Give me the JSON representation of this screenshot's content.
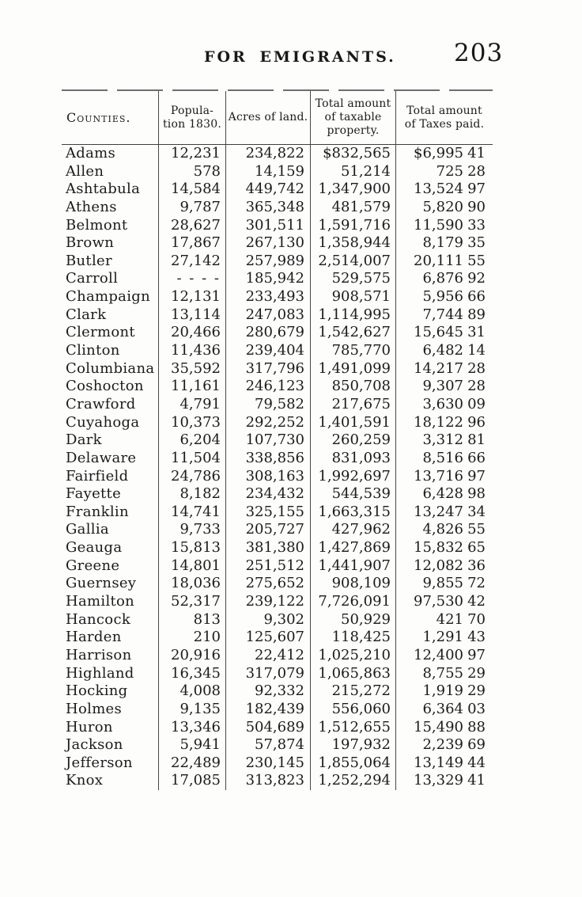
{
  "page": {
    "running_head": "FOR EMIGRANTS.",
    "page_number": "203"
  },
  "colors": {
    "paper": "#fdfdfc",
    "ink": "#1b1b1b",
    "rule": "#474747"
  },
  "table": {
    "headers": [
      {
        "lines": [
          "Counties."
        ]
      },
      {
        "lines": [
          "Popula-",
          "tion 1830."
        ]
      },
      {
        "lines": [
          "Acres of land."
        ]
      },
      {
        "lines": [
          "Total amount",
          "of taxable",
          "property."
        ]
      },
      {
        "lines": [
          "Total amount",
          "of Taxes paid."
        ]
      }
    ],
    "rows": [
      [
        "Adams",
        "12,231",
        "234,822",
        "$832,565",
        "$6,995",
        "41"
      ],
      [
        "Allen",
        "578",
        "14,159",
        "51,214",
        "725",
        "28"
      ],
      [
        "Ashtabula",
        "14,584",
        "449,742",
        "1,347,900",
        "13,524",
        "97"
      ],
      [
        "Athens",
        "9,787",
        "365,348",
        "481,579",
        "5,820",
        "90"
      ],
      [
        "Belmont",
        "28,627",
        "301,511",
        "1,591,716",
        "11,590",
        "33"
      ],
      [
        "Brown",
        "17,867",
        "267,130",
        "1,358,944",
        "8,179",
        "35"
      ],
      [
        "Butler",
        "27,142",
        "257,989",
        "2,514,007",
        "20,111",
        "55"
      ],
      [
        "Carroll",
        "- - - -",
        "185,942",
        "529,575",
        "6,876",
        "92"
      ],
      [
        "Champaign",
        "12,131",
        "233,493",
        "908,571",
        "5,956",
        "66"
      ],
      [
        "Clark",
        "13,114",
        "247,083",
        "1,114,995",
        "7,744",
        "89"
      ],
      [
        "Clermont",
        "20,466",
        "280,679",
        "1,542,627",
        "15,645",
        "31"
      ],
      [
        "Clinton",
        "11,436",
        "239,404",
        "785,770",
        "6,482",
        "14"
      ],
      [
        "Columbiana",
        "35,592",
        "317,796",
        "1,491,099",
        "14,217",
        "28"
      ],
      [
        "Coshocton",
        "11,161",
        "246,123",
        "850,708",
        "9,307",
        "28"
      ],
      [
        "Crawford",
        "4,791",
        "79,582",
        "217,675",
        "3,630",
        "09"
      ],
      [
        "Cuyahoga",
        "10,373",
        "292,252",
        "1,401,591",
        "18,122",
        "96"
      ],
      [
        "Dark",
        "6,204",
        "107,730",
        "260,259",
        "3,312",
        "81"
      ],
      [
        "Delaware",
        "11,504",
        "338,856",
        "831,093",
        "8,516",
        "66"
      ],
      [
        "Fairfield",
        "24,786",
        "308,163",
        "1,992,697",
        "13,716",
        "97"
      ],
      [
        "Fayette",
        "8,182",
        "234,432",
        "544,539",
        "6,428",
        "98"
      ],
      [
        "Franklin",
        "14,741",
        "325,155",
        "1,663,315",
        "13,247",
        "34"
      ],
      [
        "Gallia",
        "9,733",
        "205,727",
        "427,962",
        "4,826",
        "55"
      ],
      [
        "Geauga",
        "15,813",
        "381,380",
        "1,427,869",
        "15,832",
        "65"
      ],
      [
        "Greene",
        "14,801",
        "251,512",
        "1,441,907",
        "12,082",
        "36"
      ],
      [
        "Guernsey",
        "18,036",
        "275,652",
        "908,109",
        "9,855",
        "72"
      ],
      [
        "Hamilton",
        "52,317",
        "239,122",
        "7,726,091",
        "97,530",
        "42"
      ],
      [
        "Hancock",
        "813",
        "9,302",
        "50,929",
        "421",
        "70"
      ],
      [
        "Harden",
        "210",
        "125,607",
        "118,425",
        "1,291",
        "43"
      ],
      [
        "Harrison",
        "20,916",
        "22,412",
        "1,025,210",
        "12,400",
        "97"
      ],
      [
        "Highland",
        "16,345",
        "317,079",
        "1,065,863",
        "8,755",
        "29"
      ],
      [
        "Hocking",
        "4,008",
        "92,332",
        "215,272",
        "1,919",
        "29"
      ],
      [
        "Holmes",
        "9,135",
        "182,439",
        "556,060",
        "6,364",
        "03"
      ],
      [
        "Huron",
        "13,346",
        "504,689",
        "1,512,655",
        "15,490",
        "88"
      ],
      [
        "Jackson",
        "5,941",
        "57,874",
        "197,932",
        "2,239",
        "69"
      ],
      [
        "Jefferson",
        "22,489",
        "230,145",
        "1,855,064",
        "13,149",
        "44"
      ],
      [
        "Knox",
        "17,085",
        "313,823",
        "1,252,294",
        "13,329",
        "41"
      ]
    ]
  }
}
